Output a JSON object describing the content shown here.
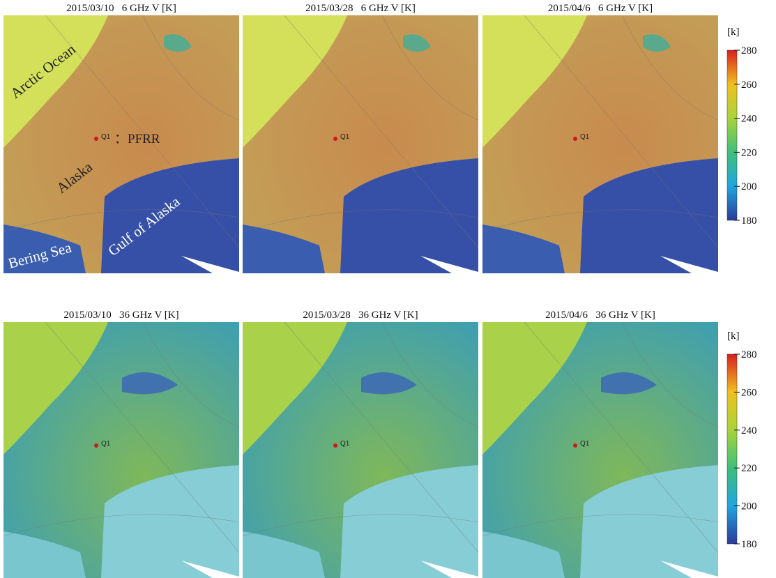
{
  "rows": [
    {
      "panels": [
        {
          "title": "2015/03/10   6 GHz V [K]",
          "marker": "Q1"
        },
        {
          "title": "2015/03/28   6 GHz V [K]",
          "marker": "Q1"
        },
        {
          "title": "2015/04/6   6 GHz V [K]",
          "marker": "Q1"
        }
      ],
      "colorbar": {
        "unit": "[k]",
        "range": [
          180,
          280
        ],
        "ticks": [
          180,
          200,
          220,
          240,
          260,
          280
        ]
      }
    },
    {
      "panels": [
        {
          "title": "2015/03/10   36 GHz V [K]",
          "marker": "Q1"
        },
        {
          "title": "2015/03/28   36 GHz V [K]",
          "marker": "Q1"
        },
        {
          "title": "2015/04/6   36 GHz V [K]",
          "marker": "Q1"
        }
      ],
      "colorbar": {
        "unit": "[k]",
        "range": [
          180,
          280
        ],
        "ticks": [
          180,
          200,
          220,
          240,
          260,
          280
        ]
      }
    }
  ],
  "annotations": [
    "Arctic Ocean",
    "：PFRR",
    "Alaska",
    "Bering Sea",
    "Gulf of Alaska"
  ]
}
